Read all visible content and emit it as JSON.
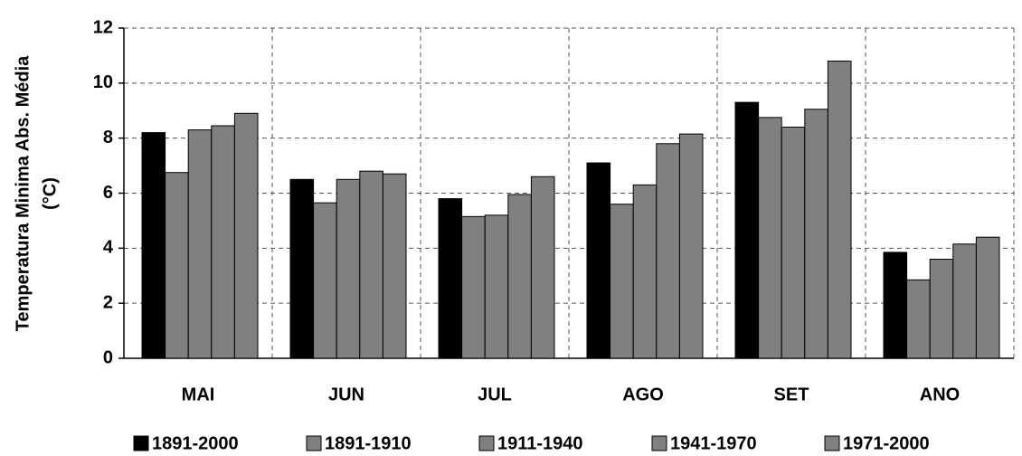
{
  "chart_data": {
    "type": "bar",
    "y_label": [
      "Temperatura Minima Abs. Média",
      "(°C)"
    ],
    "categories": [
      "MAI",
      "JUN",
      "JUL",
      "AGO",
      "SET",
      "ANO"
    ],
    "series": [
      {
        "name": "1891-2000",
        "color": "#000000",
        "values": [
          8.2,
          6.5,
          5.8,
          7.1,
          9.3,
          3.85
        ]
      },
      {
        "name": "1891-1910",
        "color": "#808080",
        "values": [
          6.75,
          5.65,
          5.15,
          5.6,
          8.75,
          2.85
        ]
      },
      {
        "name": "1911-1940",
        "color": "#808080",
        "values": [
          8.3,
          6.5,
          5.2,
          6.3,
          8.4,
          3.6
        ]
      },
      {
        "name": "1941-1970",
        "color": "#808080",
        "values": [
          8.45,
          6.8,
          5.95,
          7.8,
          9.05,
          4.15
        ]
      },
      {
        "name": "1971-2000",
        "color": "#808080",
        "values": [
          8.9,
          6.7,
          6.6,
          8.15,
          10.8,
          4.4
        ]
      }
    ],
    "ylim": [
      0,
      12
    ],
    "yticks": [
      0,
      2,
      4,
      6,
      8,
      10,
      12
    ],
    "grid": true,
    "legend": "bottom"
  }
}
